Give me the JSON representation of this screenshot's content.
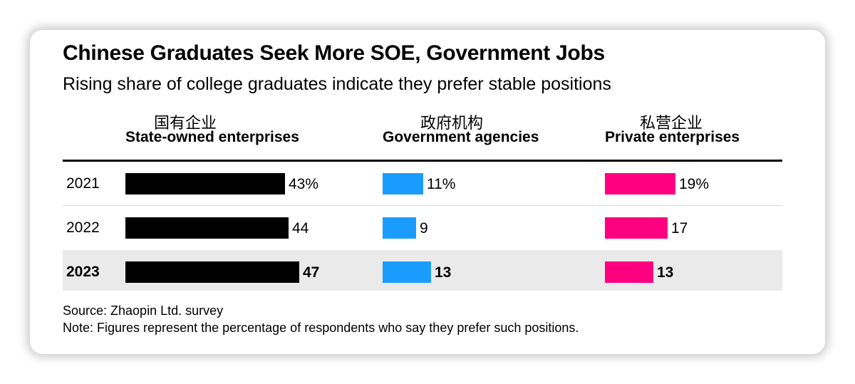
{
  "title": "Chinese Graduates Seek More SOE, Government Jobs",
  "subtitle": "Rising share of college graduates indicate they prefer stable positions",
  "source": "Source: Zhaopin Ltd. survey",
  "note": "Note: Figures represent the percentage of respondents who say they prefer such positions.",
  "colors": {
    "soe": "#000000",
    "gov": "#1a9cff",
    "private": "#ff0080",
    "highlight_row": "#eaeaea"
  },
  "chart_data": {
    "type": "bar",
    "orientation": "horizontal",
    "categories": [
      "2021",
      "2022",
      "2023"
    ],
    "highlighted_category": "2023",
    "series": [
      {
        "name": "State-owned enterprises",
        "name_zh": "国有企业",
        "values": [
          43,
          44,
          47
        ],
        "labels": [
          "43%",
          "44",
          "47"
        ]
      },
      {
        "name": "Government agencies",
        "name_zh": "政府机构",
        "values": [
          11,
          9,
          13
        ],
        "labels": [
          "11%",
          "9",
          "13"
        ]
      },
      {
        "name": "Private enterprises",
        "name_zh": "私营企业",
        "values": [
          19,
          17,
          13
        ],
        "labels": [
          "19%",
          "17",
          "13"
        ]
      }
    ],
    "unit": "%",
    "xlim": [
      0,
      50
    ]
  }
}
